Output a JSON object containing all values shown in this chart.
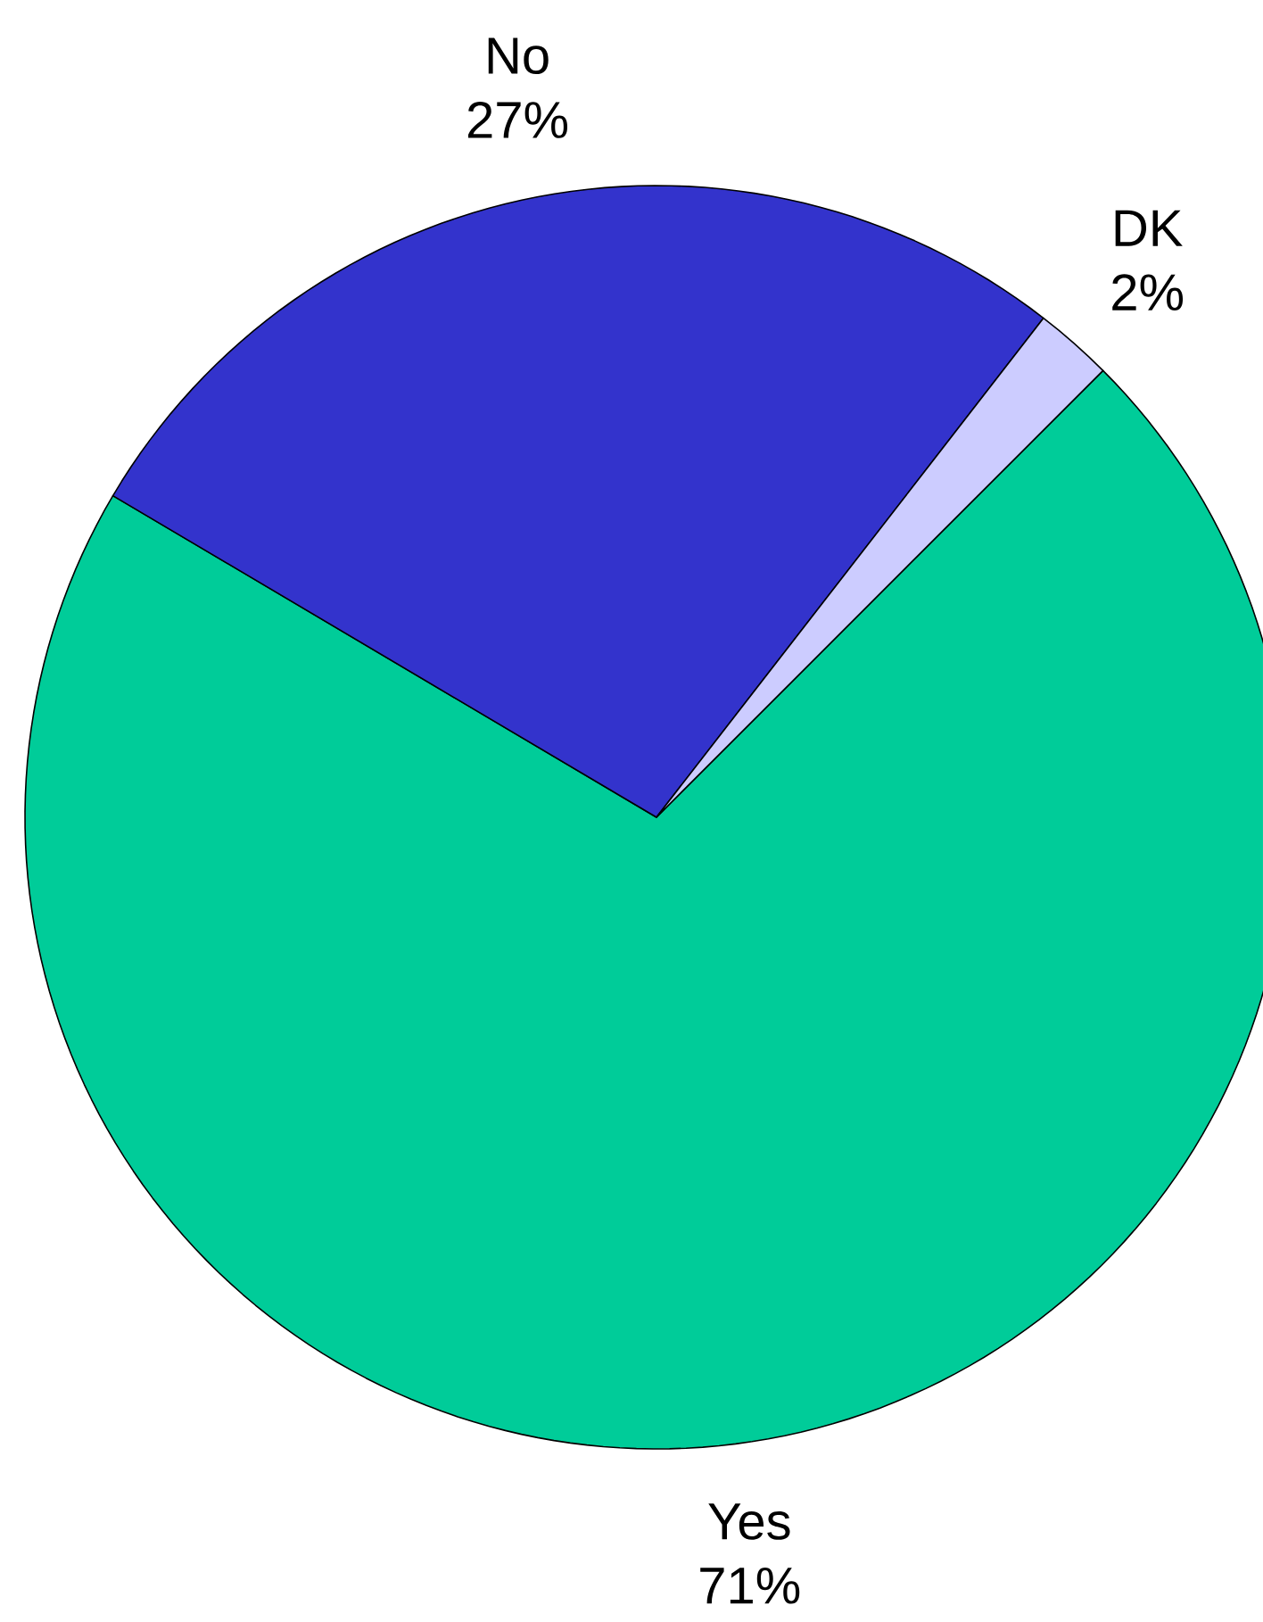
{
  "chart_data": {
    "type": "pie",
    "categories": [
      "Yes",
      "No",
      "DK"
    ],
    "values": [
      71,
      27,
      2
    ],
    "colors": [
      "#00cc99",
      "#3333cc",
      "#ccccff"
    ],
    "value_labels": [
      "71%",
      "27%",
      "2%"
    ]
  }
}
